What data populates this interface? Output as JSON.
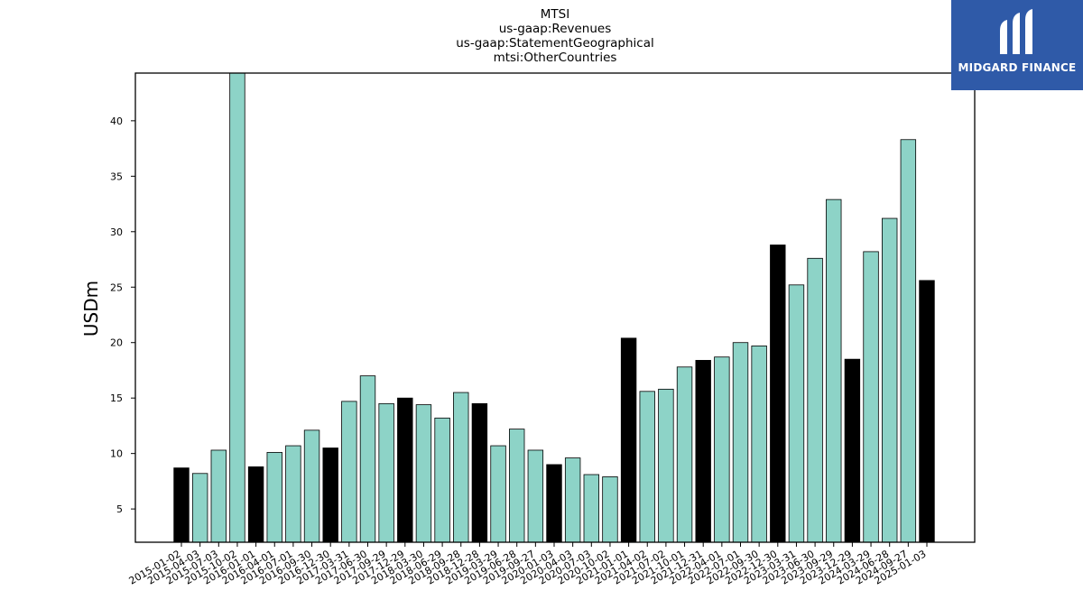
{
  "chart_data": {
    "type": "bar",
    "title_lines": [
      "MTSI",
      "us-gaap:Revenues",
      "us-gaap:StatementGeographical",
      "mtsi:OtherCountries"
    ],
    "xlabel": "",
    "ylabel": "USDm",
    "ylim": [
      2.0,
      44.3
    ],
    "yticks": [
      5,
      10,
      15,
      20,
      25,
      30,
      35,
      40
    ],
    "grid": false,
    "categories": [
      "2015-01-02",
      "2015-04-03",
      "2015-07-03",
      "2015-10-02",
      "2016-01-01",
      "2016-04-01",
      "2016-07-01",
      "2016-09-30",
      "2016-12-30",
      "2017-03-31",
      "2017-06-30",
      "2017-09-29",
      "2017-12-29",
      "2018-03-30",
      "2018-06-29",
      "2018-09-28",
      "2018-12-28",
      "2019-03-29",
      "2019-06-28",
      "2019-09-27",
      "2020-01-03",
      "2020-04-03",
      "2020-07-03",
      "2020-10-02",
      "2021-01-01",
      "2021-04-02",
      "2021-07-02",
      "2021-10-01",
      "2021-12-31",
      "2022-04-01",
      "2022-07-01",
      "2022-09-30",
      "2022-12-30",
      "2023-03-31",
      "2023-06-30",
      "2023-09-29",
      "2023-12-29",
      "2024-03-29",
      "2024-06-28",
      "2024-09-27",
      "2025-01-03"
    ],
    "values": [
      8.7,
      8.2,
      10.3,
      44.3,
      8.8,
      10.1,
      10.7,
      12.1,
      10.5,
      14.7,
      17.0,
      14.5,
      15.0,
      14.4,
      13.2,
      15.5,
      14.5,
      10.7,
      12.2,
      10.3,
      9.0,
      9.6,
      8.1,
      7.9,
      20.4,
      15.6,
      15.8,
      17.8,
      18.4,
      18.7,
      20.0,
      19.7,
      28.8,
      25.2,
      27.6,
      32.9,
      18.5,
      28.2,
      31.2,
      38.3,
      25.6
    ],
    "highlighted": [
      true,
      false,
      false,
      false,
      true,
      false,
      false,
      false,
      true,
      false,
      false,
      false,
      true,
      false,
      false,
      false,
      true,
      false,
      false,
      false,
      true,
      false,
      false,
      false,
      true,
      false,
      false,
      false,
      true,
      false,
      false,
      false,
      true,
      false,
      false,
      false,
      true,
      false,
      false,
      false,
      true
    ],
    "colors": {
      "bar": "#8dd3c7",
      "highlight": "#000000",
      "edge": "#000000"
    }
  },
  "logo": {
    "text": "MIDGARD FINANCE",
    "background": "#2f5aa8",
    "foreground": "#ffffff"
  }
}
